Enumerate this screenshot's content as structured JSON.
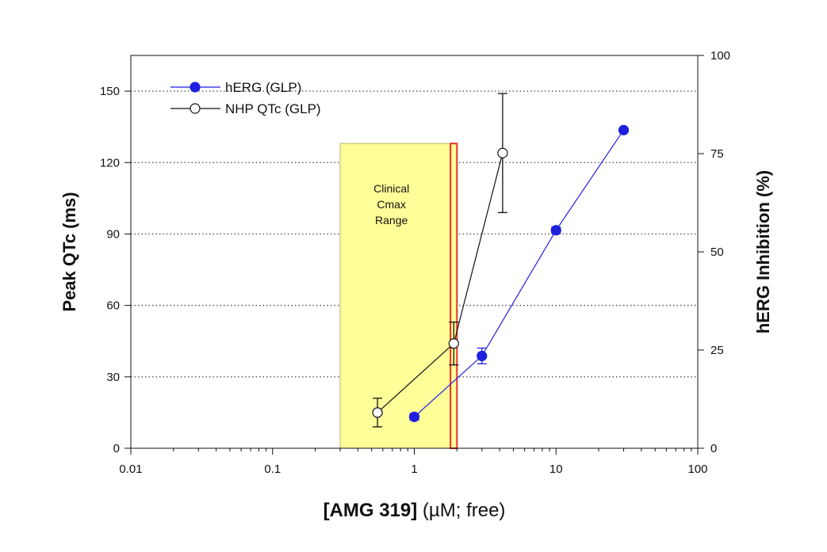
{
  "chart_data": {
    "type": "scatter",
    "xscale": "log",
    "xlim": [
      0.01,
      100
    ],
    "xticks": [
      0.01,
      0.1,
      1,
      10,
      100
    ],
    "xtick_labels": [
      "0.01",
      "0.1",
      "1",
      "10",
      "100"
    ],
    "xlabel_bold": "[AMG 319]",
    "xlabel_rest": " (µM; free)",
    "ylabel_left": "Peak QTc (ms)",
    "ylim_left": [
      0,
      165
    ],
    "yticks_left": [
      0,
      30,
      60,
      90,
      120,
      150
    ],
    "ylabel_right": "hERG Inhibition (%)",
    "ylim_right": [
      0,
      100
    ],
    "yticks_right": [
      0,
      25,
      50,
      75,
      100
    ],
    "grid": "horizontal dotted",
    "legend_position": "top-left",
    "series": [
      {
        "name": "hERG (GLP)",
        "axis": "right",
        "marker": "filled-circle",
        "color": "#1f1fe0",
        "points": [
          {
            "x": 1,
            "y": 8,
            "err": 0.8
          },
          {
            "x": 3,
            "y": 23.5,
            "err": 2
          },
          {
            "x": 10,
            "y": 55.5,
            "err": 0.8
          },
          {
            "x": 30,
            "y": 81,
            "err": 0
          }
        ]
      },
      {
        "name": "NHP QTc (GLP)",
        "axis": "left",
        "marker": "open-circle",
        "color": "#111111",
        "points": [
          {
            "x": 0.55,
            "y": 15,
            "err": 6
          },
          {
            "x": 1.9,
            "y": 44,
            "err": 9
          },
          {
            "x": 4.2,
            "y": 124,
            "err": 25
          }
        ]
      }
    ],
    "shaded_region": {
      "label_lines": [
        "Clinical",
        "Cmax",
        "Range"
      ],
      "x_start": 0.3,
      "x_end": 2.0,
      "y_top": 128,
      "fill": "#ffff99"
    },
    "highlight_band": {
      "x_start": 1.8,
      "x_end": 2.0,
      "y_top": 128,
      "stroke": "#e8302b"
    }
  }
}
